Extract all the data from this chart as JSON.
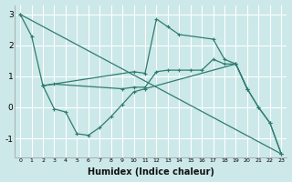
{
  "xlabel": "Humidex (Indice chaleur)",
  "background_color": "#cce8e8",
  "grid_color": "#ffffff",
  "line_color": "#2e7d6e",
  "xlim": [
    -0.5,
    23.5
  ],
  "ylim": [
    -1.6,
    3.3
  ],
  "yticks": [
    -1,
    0,
    1,
    2,
    3
  ],
  "xticks": [
    0,
    1,
    2,
    3,
    4,
    5,
    6,
    7,
    8,
    9,
    10,
    11,
    12,
    13,
    14,
    15,
    16,
    17,
    18,
    19,
    20,
    21,
    22,
    23
  ],
  "series": [
    {
      "x": [
        0,
        1,
        2,
        10,
        11,
        12,
        13,
        14,
        17,
        18,
        19,
        20,
        21,
        22,
        23
      ],
      "y": [
        3.0,
        2.3,
        0.7,
        1.15,
        1.1,
        2.85,
        2.6,
        2.35,
        2.2,
        1.55,
        1.4,
        0.6,
        0.0,
        -0.5,
        -1.5
      ]
    },
    {
      "x": [
        0,
        23
      ],
      "y": [
        3.0,
        -1.5
      ]
    },
    {
      "x": [
        2,
        3,
        9,
        10,
        11,
        12,
        13,
        14,
        15,
        16,
        17,
        18,
        19,
        20
      ],
      "y": [
        0.7,
        0.75,
        0.6,
        0.65,
        0.65,
        1.15,
        1.2,
        1.2,
        1.2,
        1.2,
        1.55,
        1.4,
        1.4,
        0.6
      ]
    },
    {
      "x": [
        2,
        3,
        4,
        5,
        6,
        7,
        8,
        9,
        10,
        11,
        19,
        20,
        21,
        22,
        23
      ],
      "y": [
        0.7,
        -0.05,
        -0.15,
        -0.85,
        -0.9,
        -0.65,
        -0.3,
        0.1,
        0.5,
        0.6,
        1.4,
        0.6,
        0.0,
        -0.5,
        -1.5
      ]
    }
  ]
}
